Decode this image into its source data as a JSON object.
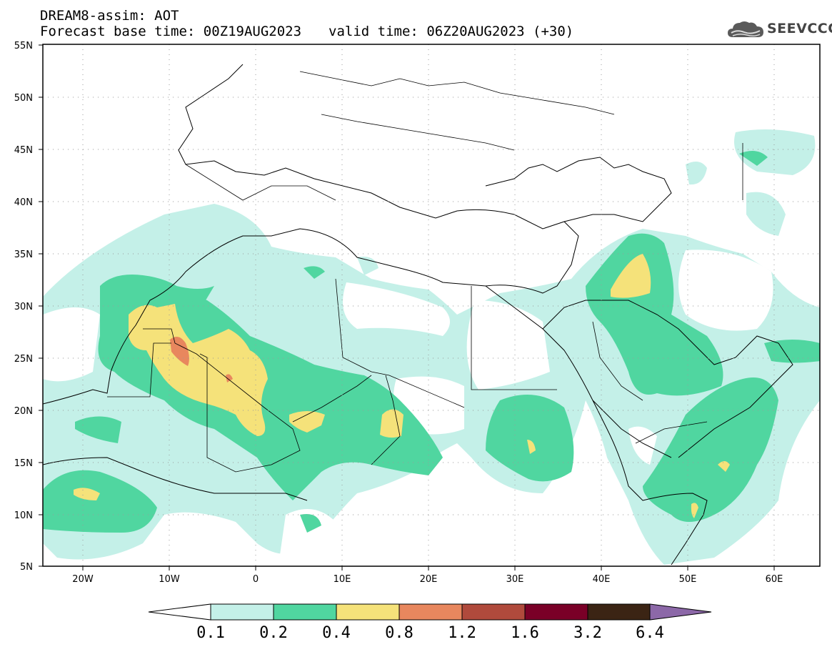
{
  "header": {
    "title_line1": "DREAM8-assim: AOT",
    "base_time": "Forecast base time: 00Z19AUG2023",
    "valid_time": "valid time: 06Z20AUG2023 (+30)"
  },
  "logo": {
    "text": "SEEVCCC",
    "icon": "cloud-logo-icon"
  },
  "map": {
    "lon_range": [
      -25,
      65
    ],
    "lat_range": [
      5,
      55
    ],
    "lat_labels": [
      "55N",
      "50N",
      "45N",
      "40N",
      "35N",
      "30N",
      "25N",
      "20N",
      "15N",
      "10N",
      "5N"
    ],
    "lon_labels": [
      "20W",
      "10W",
      "0",
      "10E",
      "20E",
      "30E",
      "40E",
      "50E",
      "60E"
    ]
  },
  "colorbar": {
    "levels": [
      "0.1",
      "0.2",
      "0.4",
      "0.8",
      "1.2",
      "1.6",
      "3.2",
      "6.4"
    ],
    "colors": [
      "#ffffff",
      "#c4f0e8",
      "#50d6a0",
      "#f5e27a",
      "#e8875e",
      "#b04a3c",
      "#7a0027",
      "#3b2414",
      "#8c68a8"
    ]
  }
}
